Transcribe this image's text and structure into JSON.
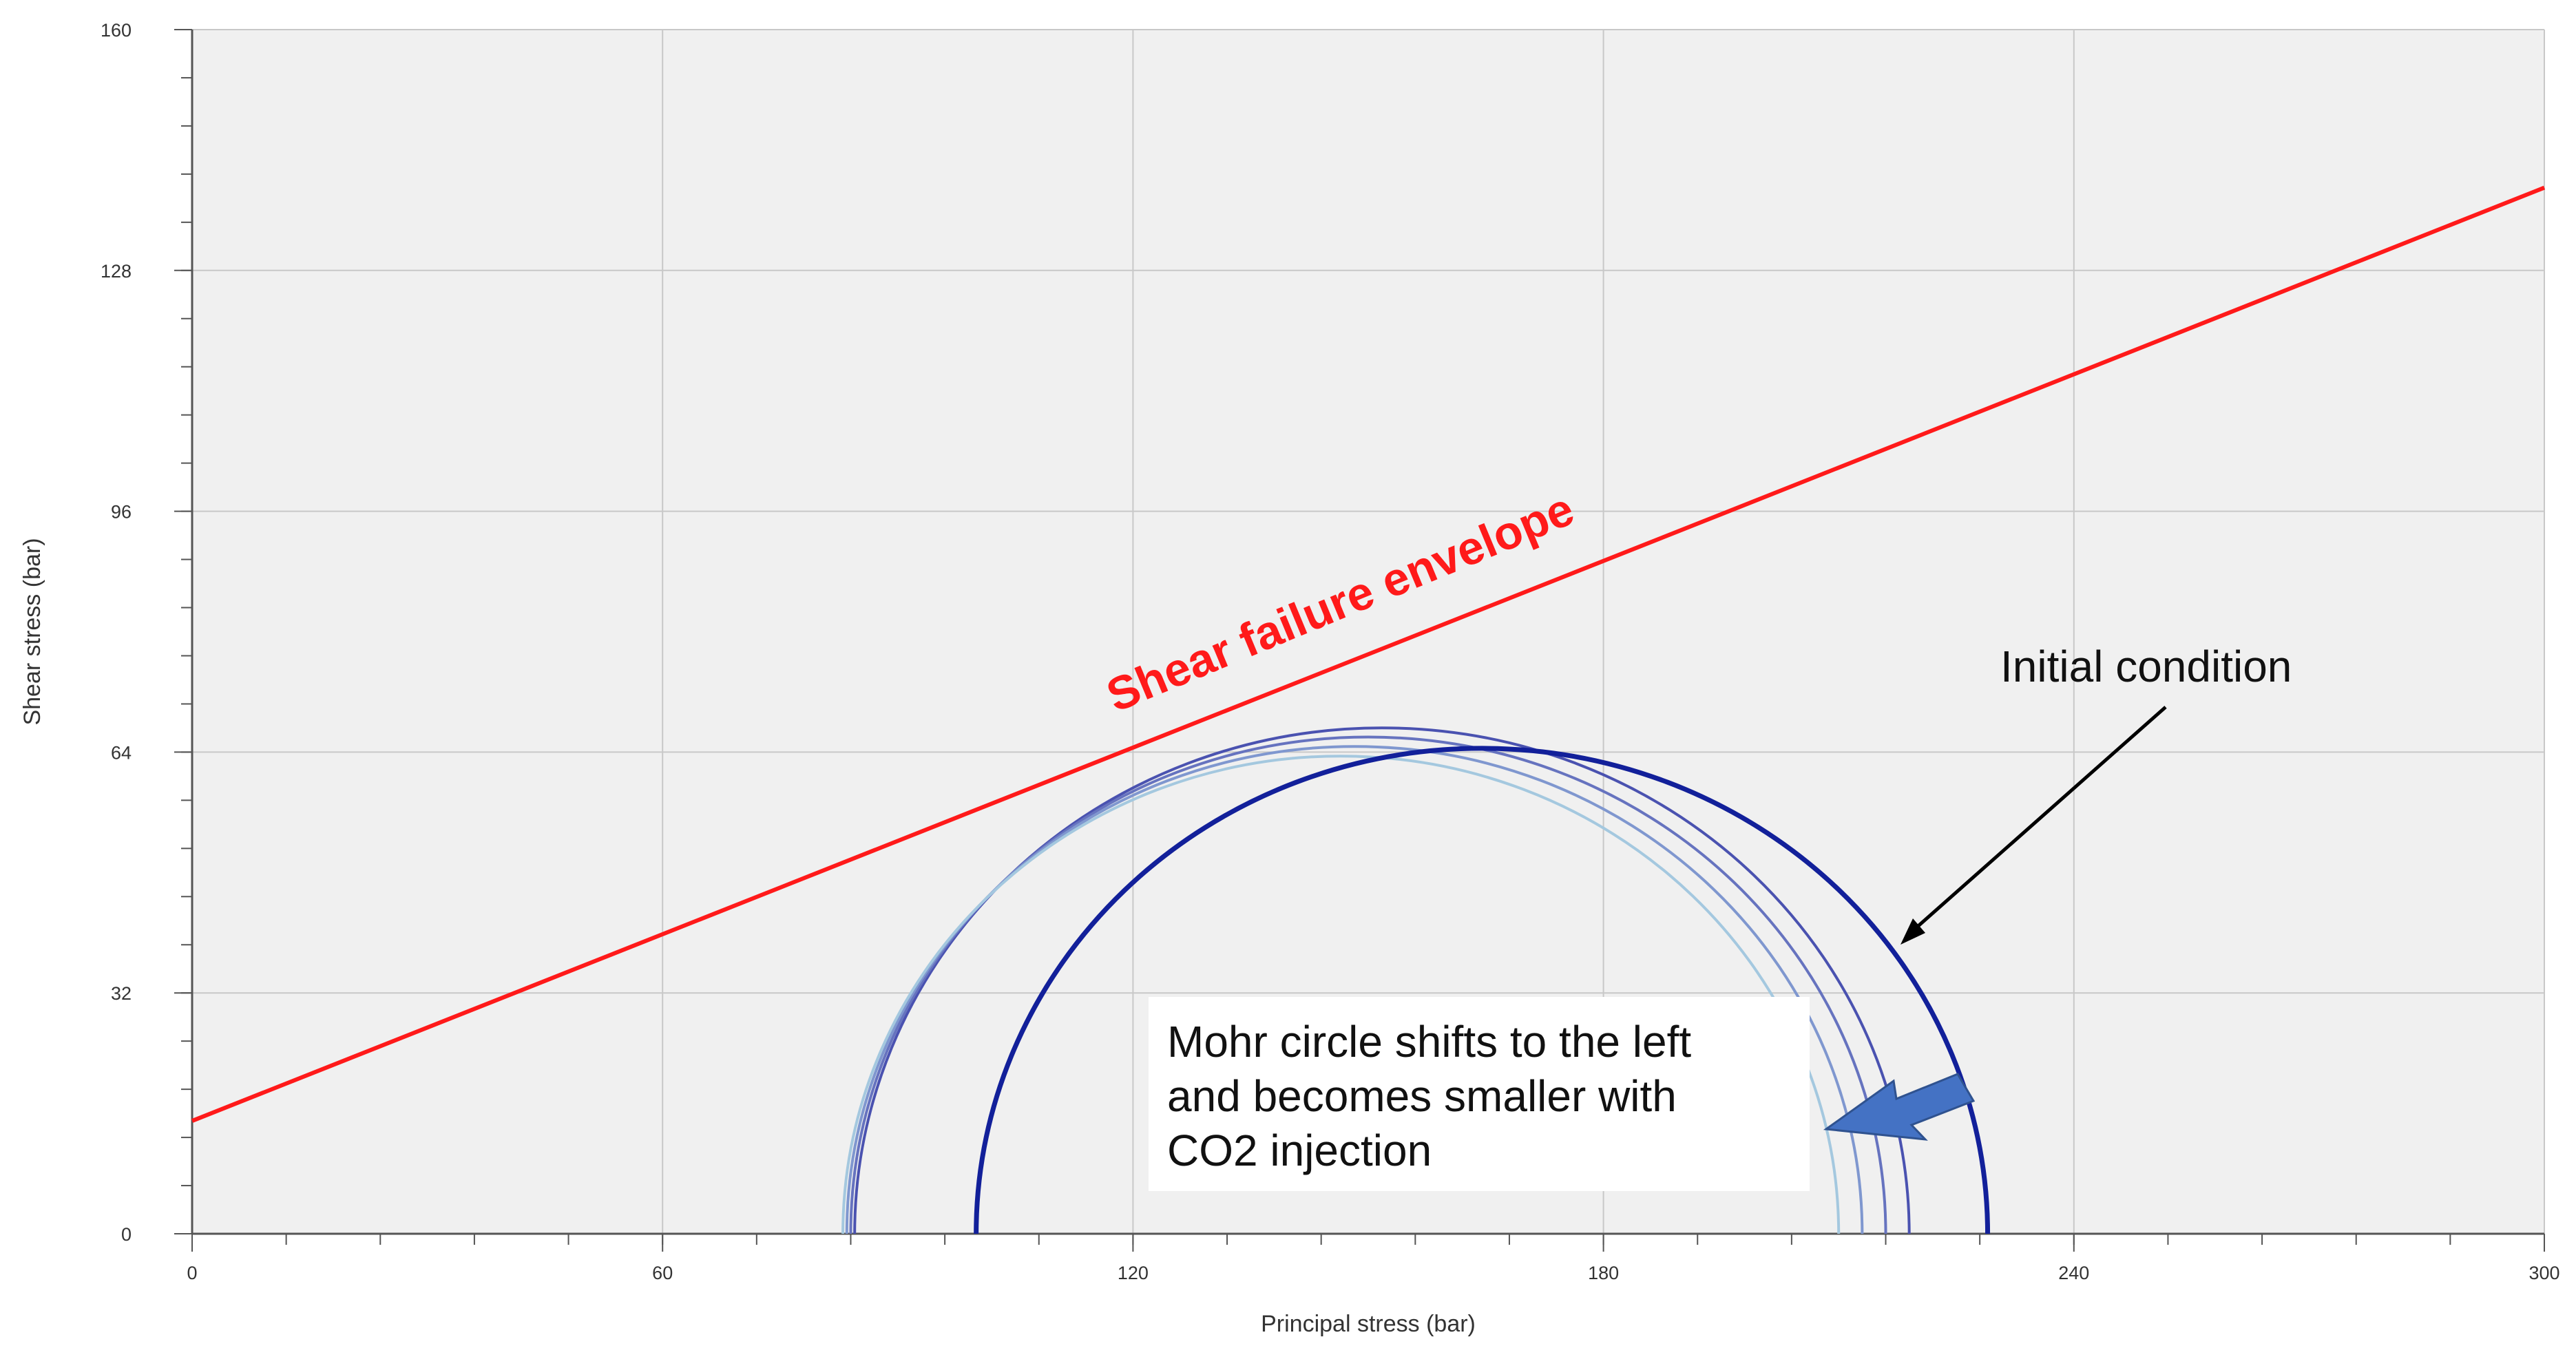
{
  "chart_data": {
    "type": "line",
    "title": "",
    "xlabel": "Principal stress (bar)",
    "ylabel": "Shear stress (bar)",
    "xlim": [
      0,
      300
    ],
    "ylim": [
      0,
      160
    ],
    "x_ticks": [
      0,
      60,
      120,
      180,
      240,
      300
    ],
    "y_ticks": [
      0,
      32,
      64,
      96,
      128,
      160
    ],
    "x_minor_step": 12,
    "y_minor_step": 6.4,
    "grid": true,
    "legend": "none",
    "plot_background": "#f0f0f0",
    "grid_color": "#c8c8c8",
    "failure_envelope": {
      "name": "Shear failure envelope",
      "color": "#ff1a1a",
      "x": [
        0,
        300
      ],
      "y": [
        15,
        139
      ]
    },
    "mohr_circles": [
      {
        "sigma3": 100,
        "sigma1": 229,
        "color": "#12209a",
        "width": 7,
        "initial": true
      },
      {
        "sigma3": 84.5,
        "sigma1": 219,
        "color": "#4a52b0",
        "width": 4,
        "initial": false
      },
      {
        "sigma3": 84,
        "sigma1": 216,
        "color": "#6673bf",
        "width": 4,
        "initial": false
      },
      {
        "sigma3": 83.5,
        "sigma1": 213,
        "color": "#7f97cf",
        "width": 4,
        "initial": false
      },
      {
        "sigma3": 83,
        "sigma1": 210,
        "color": "#a4c8df",
        "width": 4,
        "initial": false
      }
    ],
    "annotations": {
      "initial_condition": "Initial condition",
      "shift_note_lines": [
        "Mohr circle shifts to the left",
        "and becomes smaller with",
        "CO2 injection"
      ]
    },
    "arrow_color": "#4472c4",
    "pointer_color": "#000000"
  }
}
